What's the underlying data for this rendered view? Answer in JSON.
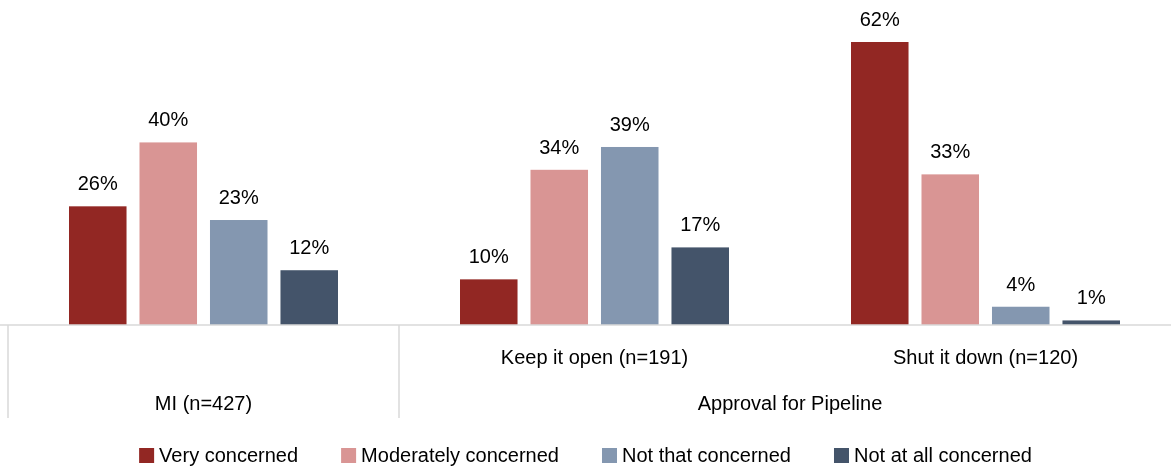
{
  "chart_data": {
    "type": "bar",
    "categories": [
      null,
      "Keep it open (n=191)",
      "Shut it down (n=120)"
    ],
    "series": [
      {
        "name": "Very concerned",
        "color": "#922723",
        "values": [
          26,
          10,
          62
        ],
        "value_labels": [
          "26%",
          "10%",
          "62%"
        ]
      },
      {
        "name": "Moderately concerned",
        "color": "#d99594",
        "values": [
          40,
          34,
          33
        ],
        "value_labels": [
          "40%",
          "34%",
          "33%"
        ]
      },
      {
        "name": "Not that concerned",
        "color": "#8497b0",
        "values": [
          23,
          39,
          4
        ],
        "value_labels": [
          "23%",
          "39%",
          "4%"
        ]
      },
      {
        "name": "Not at all concerned",
        "color": "#44546a",
        "values": [
          12,
          17,
          1
        ],
        "value_labels": [
          "12%",
          "17%",
          "1%"
        ]
      }
    ],
    "annotations": [
      "MI (n=427)",
      "Approval for Pipeline"
    ],
    "legend": "bottom"
  }
}
